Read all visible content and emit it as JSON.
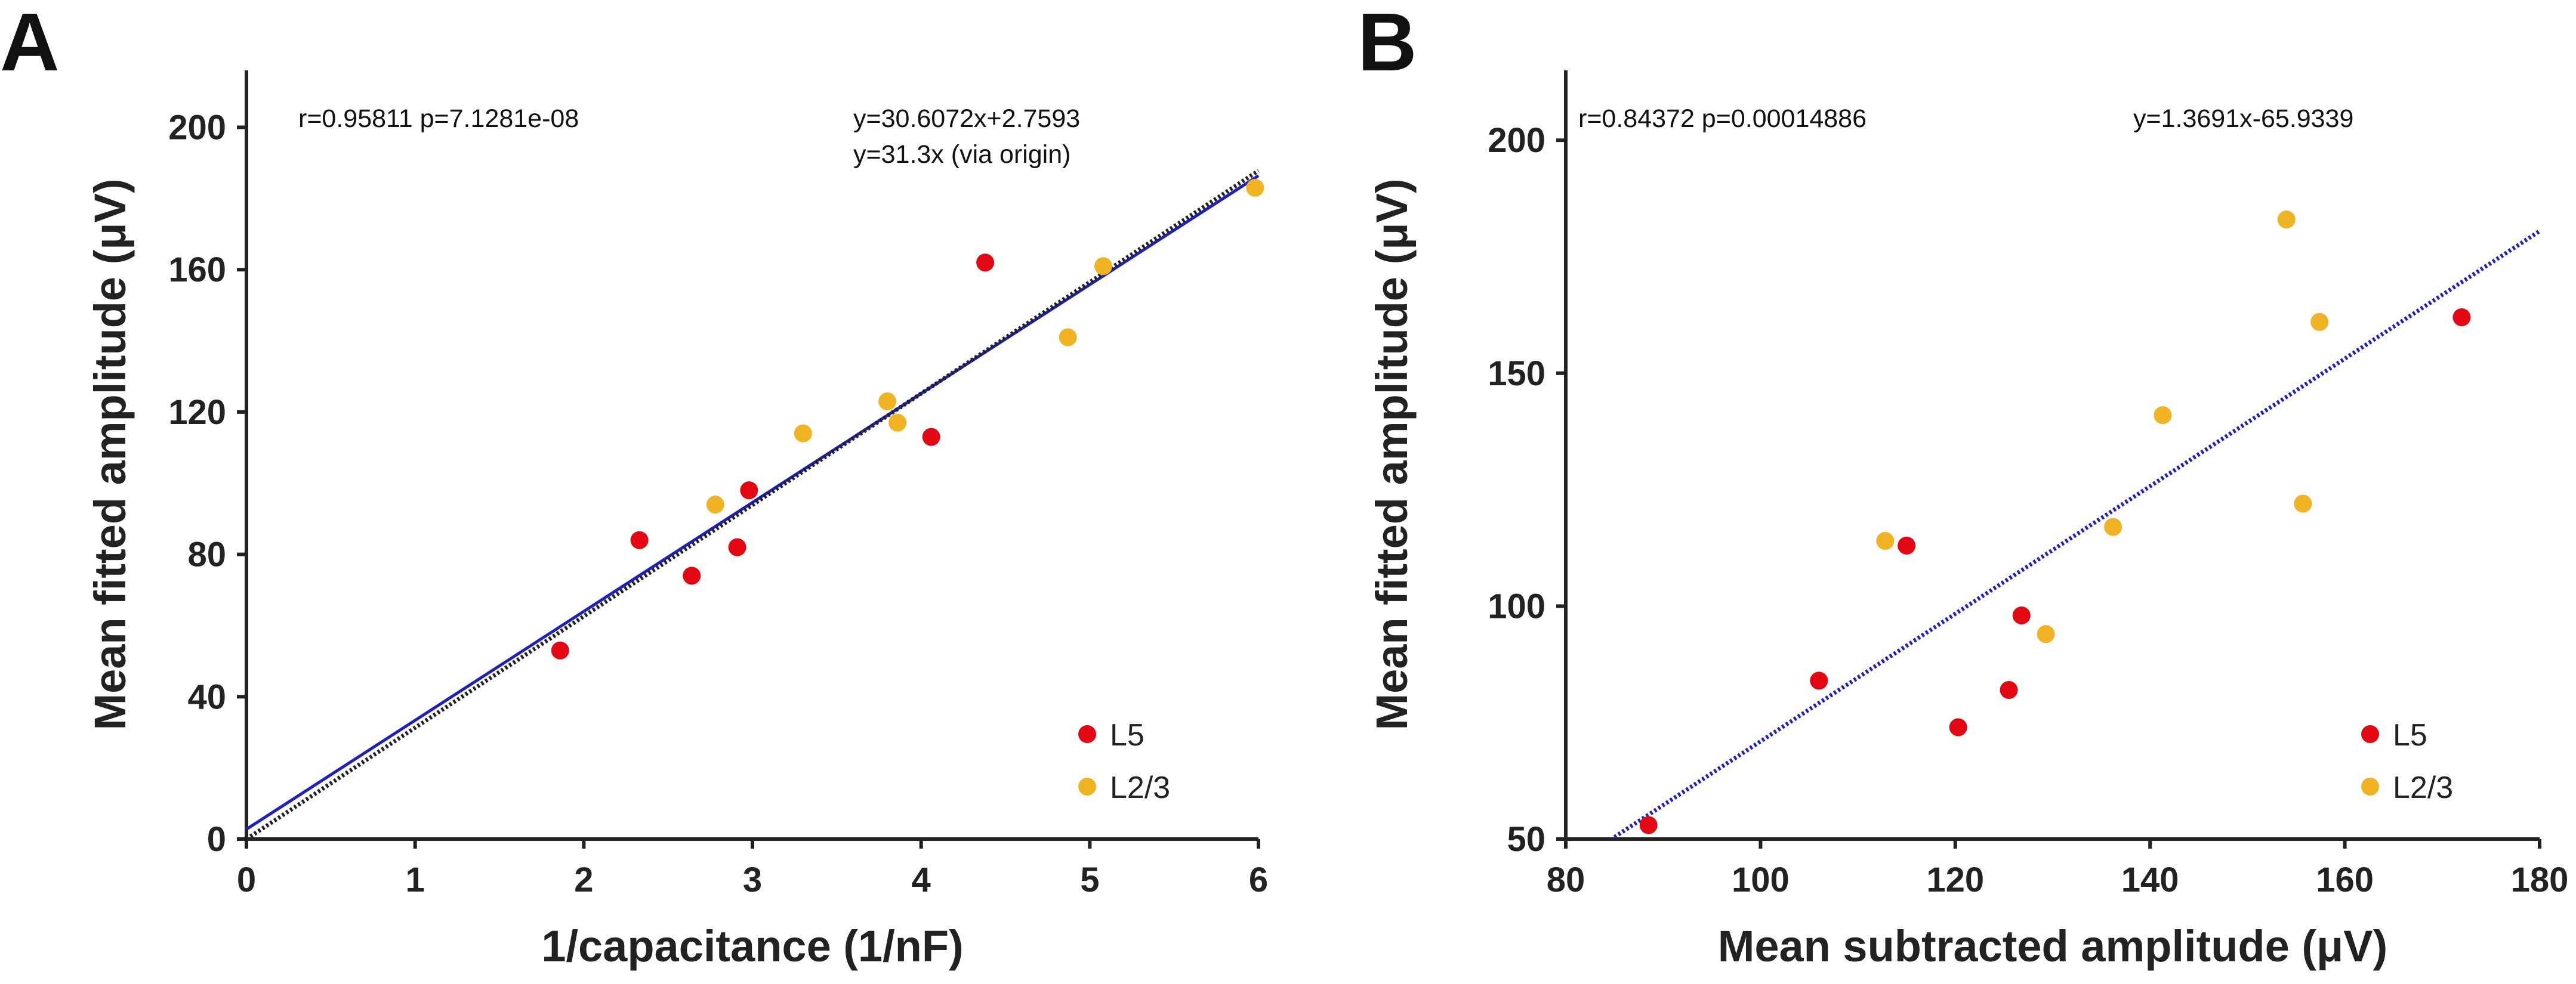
{
  "chart_data": [
    {
      "panel": "A",
      "type": "scatter",
      "xlabel": "1/capacitance (1/nF)",
      "ylabel": "Mean fitted amplitude (μV)",
      "xlim": [
        0,
        6
      ],
      "ylim": [
        0,
        216
      ],
      "xticks": [
        0,
        1,
        2,
        3,
        4,
        5,
        6
      ],
      "yticks": [
        0,
        40,
        80,
        120,
        160,
        200
      ],
      "grid": false,
      "legend_position": "bottom-right",
      "series": [
        {
          "name": "L5",
          "color": "#e30613",
          "points": [
            [
              1.86,
              53
            ],
            [
              2.33,
              84
            ],
            [
              2.64,
              74
            ],
            [
              2.91,
              82
            ],
            [
              2.98,
              98
            ],
            [
              4.06,
              113
            ],
            [
              4.38,
              162
            ]
          ]
        },
        {
          "name": "L2/3",
          "color": "#f0b323",
          "points": [
            [
              2.78,
              94
            ],
            [
              3.3,
              114
            ],
            [
              3.8,
              123
            ],
            [
              3.86,
              117
            ],
            [
              4.87,
              141
            ],
            [
              5.08,
              161
            ],
            [
              5.98,
              183
            ]
          ]
        }
      ],
      "fits": [
        {
          "name": "linear fit",
          "slope": 30.6072,
          "intercept": 2.7593,
          "color": "#1f1fbf",
          "style": "solid",
          "x_range": [
            0,
            6
          ]
        },
        {
          "name": "fit via origin",
          "slope": 31.3,
          "intercept": 0,
          "color": "#222222",
          "style": "dotted",
          "x_range": [
            0,
            6
          ]
        }
      ],
      "annotations": {
        "stats": "r=0.95811  p=7.1281e-08",
        "equation": "y=30.6072x+2.7593",
        "equation_origin": "y=31.3x (via origin)"
      }
    },
    {
      "panel": "B",
      "type": "scatter",
      "xlabel": "Mean subtracted amplitude (μV)",
      "ylabel": "Mean fitted amplitude (μV)",
      "xlim": [
        80,
        180
      ],
      "ylim": [
        50,
        215
      ],
      "xticks": [
        80,
        100,
        120,
        140,
        160,
        180
      ],
      "yticks": [
        50,
        100,
        150,
        200
      ],
      "grid": false,
      "legend_position": "bottom-right",
      "series": [
        {
          "name": "L5",
          "color": "#e30613",
          "points": [
            [
              88.5,
              53
            ],
            [
              106,
              84
            ],
            [
              115,
              113
            ],
            [
              120.3,
              74
            ],
            [
              125.5,
              82
            ],
            [
              126.8,
              98
            ],
            [
              172,
              162
            ]
          ]
        },
        {
          "name": "L2/3",
          "color": "#f0b323",
          "points": [
            [
              112.8,
              114
            ],
            [
              129.3,
              94
            ],
            [
              136.2,
              117
            ],
            [
              141.3,
              141
            ],
            [
              154,
              183
            ],
            [
              155.7,
              122
            ],
            [
              157.4,
              161
            ]
          ]
        }
      ],
      "fits": [
        {
          "name": "linear fit",
          "slope": 1.3691,
          "intercept": -65.9339,
          "color": "#1f1fbf",
          "style": "dotted",
          "x_range": [
            85,
            180
          ]
        }
      ],
      "annotations": {
        "stats": "r=0.84372  p=0.00014886",
        "equation": "y=1.3691x-65.9339"
      }
    }
  ]
}
